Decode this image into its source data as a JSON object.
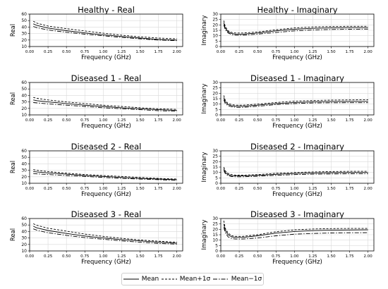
{
  "chart_data": [
    {
      "type": "line",
      "title": "Healthy - Real",
      "xlabel": "Frequency (GHz)",
      "ylabel": "Real",
      "xlim": [
        0,
        2.08
      ],
      "ylim": [
        10,
        60
      ],
      "xticks": [
        "0.00",
        "0.25",
        "0.50",
        "0.75",
        "1.00",
        "1.25",
        "1.50",
        "1.75",
        "2.00"
      ],
      "yticks": [
        "10",
        "20",
        "30",
        "40",
        "50",
        "60"
      ],
      "grid": true,
      "x": [
        0.05,
        0.1,
        0.25,
        0.5,
        0.75,
        1.0,
        1.25,
        1.5,
        1.75,
        2.0
      ],
      "series": [
        {
          "name": "Mean",
          "values": [
            45,
            42.5,
            38.5,
            34.5,
            31,
            28,
            25.5,
            23,
            21,
            20
          ]
        },
        {
          "name": "Mean+1σ",
          "values": [
            49,
            46,
            41.5,
            37.5,
            34,
            30.5,
            27.5,
            25,
            23,
            22
          ]
        },
        {
          "name": "Mean−1σ",
          "values": [
            41,
            39,
            35.5,
            32,
            29,
            26.5,
            24,
            22,
            20,
            19
          ]
        }
      ]
    },
    {
      "type": "line",
      "title": "Healthy - Imaginary",
      "xlabel": "Frequency (GHz)",
      "ylabel": "Imaginary",
      "xlim": [
        0,
        2.08
      ],
      "ylim": [
        0,
        30
      ],
      "xticks": [
        "0.00",
        "0.25",
        "0.50",
        "0.75",
        "1.00",
        "1.25",
        "1.50",
        "1.75",
        "2.00"
      ],
      "yticks": [
        "0",
        "5",
        "10",
        "15",
        "20",
        "25",
        "30"
      ],
      "grid": true,
      "x": [
        0.04,
        0.06,
        0.1,
        0.15,
        0.2,
        0.3,
        0.5,
        0.75,
        1.0,
        1.25,
        1.5,
        1.75,
        2.0
      ],
      "series": [
        {
          "name": "Mean",
          "values": [
            22,
            17,
            13.5,
            12,
            11.5,
            11.5,
            12.5,
            14.5,
            16,
            16.8,
            17.2,
            17.5,
            17.5
          ]
        },
        {
          "name": "Mean+1σ",
          "values": [
            24,
            18.5,
            14.5,
            13,
            12.5,
            12.5,
            13.5,
            15.5,
            17.2,
            18.1,
            18.5,
            18.7,
            18.7
          ]
        },
        {
          "name": "Mean−1σ",
          "values": [
            20,
            15.5,
            12.5,
            11,
            10.5,
            10.5,
            11.5,
            13,
            14.5,
            15.3,
            15.8,
            16,
            16.1
          ]
        }
      ]
    },
    {
      "type": "line",
      "title": "Diseased 1 - Real",
      "xlabel": "Frequency (GHz)",
      "ylabel": "Real",
      "xlim": [
        0,
        2.08
      ],
      "ylim": [
        10,
        60
      ],
      "xticks": [
        "0.00",
        "0.25",
        "0.50",
        "0.75",
        "1.00",
        "1.25",
        "1.50",
        "1.75",
        "2.00"
      ],
      "yticks": [
        "10",
        "20",
        "30",
        "40",
        "50",
        "60"
      ],
      "grid": true,
      "x": [
        0.05,
        0.1,
        0.25,
        0.5,
        0.75,
        1.0,
        1.25,
        1.5,
        1.75,
        2.0
      ],
      "series": [
        {
          "name": "Mean",
          "values": [
            33,
            32,
            30,
            27.5,
            25,
            23,
            21,
            19.5,
            18,
            17
          ]
        },
        {
          "name": "Mean+1σ",
          "values": [
            37,
            35.5,
            33,
            30,
            27.5,
            25,
            23,
            21,
            19.5,
            18.5
          ]
        },
        {
          "name": "Mean−1σ",
          "values": [
            29,
            28.5,
            27,
            25,
            23,
            21,
            19.5,
            18,
            16.5,
            15.5
          ]
        }
      ]
    },
    {
      "type": "line",
      "title": "Diseased 1 - Imaginary",
      "xlabel": "Frequency (GHz)",
      "ylabel": "Imaginary",
      "xlim": [
        0,
        2.08
      ],
      "ylim": [
        0,
        30
      ],
      "xticks": [
        "0.00",
        "0.25",
        "0.50",
        "0.75",
        "1.00",
        "1.25",
        "1.50",
        "1.75",
        "2.00"
      ],
      "yticks": [
        "0",
        "5",
        "10",
        "15",
        "20",
        "25",
        "30"
      ],
      "grid": true,
      "x": [
        0.04,
        0.06,
        0.1,
        0.15,
        0.2,
        0.3,
        0.5,
        0.75,
        1.0,
        1.25,
        1.5,
        1.75,
        2.0
      ],
      "series": [
        {
          "name": "Mean",
          "values": [
            16,
            12,
            9.5,
            8.5,
            8,
            8,
            9,
            10.5,
            11.5,
            12,
            12.3,
            12.5,
            12.5
          ]
        },
        {
          "name": "Mean+1σ",
          "values": [
            18,
            13.5,
            10.5,
            9.5,
            9,
            9,
            10,
            11.5,
            12.7,
            13.3,
            13.7,
            13.9,
            14
          ]
        },
        {
          "name": "Mean−1σ",
          "values": [
            14,
            10.5,
            8.5,
            7.5,
            7,
            7,
            8,
            9.5,
            10.5,
            11,
            11.2,
            11.3,
            11.3
          ]
        }
      ]
    },
    {
      "type": "line",
      "title": "Diseased 2 - Real",
      "xlabel": "Frequency (GHz)",
      "ylabel": "Real",
      "xlim": [
        0,
        2.08
      ],
      "ylim": [
        10,
        60
      ],
      "xticks": [
        "0.00",
        "0.25",
        "0.50",
        "0.75",
        "1.00",
        "1.25",
        "1.50",
        "1.75",
        "2.00"
      ],
      "yticks": [
        "10",
        "20",
        "30",
        "40",
        "50",
        "60"
      ],
      "grid": true,
      "x": [
        0.05,
        0.1,
        0.25,
        0.5,
        0.75,
        1.0,
        1.25,
        1.5,
        1.75,
        2.0
      ],
      "series": [
        {
          "name": "Mean",
          "values": [
            28,
            27.5,
            26,
            24,
            22,
            20.5,
            19,
            17.5,
            16.5,
            15.5
          ]
        },
        {
          "name": "Mean+1σ",
          "values": [
            31,
            30,
            28,
            25.5,
            23.5,
            22,
            20.5,
            19,
            17.5,
            16.5
          ]
        },
        {
          "name": "Mean−1σ",
          "values": [
            25,
            24.5,
            23.5,
            22,
            20.5,
            19,
            17.5,
            16.5,
            15.5,
            14.5
          ]
        }
      ]
    },
    {
      "type": "line",
      "title": "Diseased 2 - Imaginary",
      "xlabel": "Frequency (GHz)",
      "ylabel": "Imaginary",
      "xlim": [
        0,
        2.08
      ],
      "ylim": [
        0,
        30
      ],
      "xticks": [
        "0.00",
        "0.25",
        "0.50",
        "0.75",
        "1.00",
        "1.25",
        "1.50",
        "1.75",
        "2.00"
      ],
      "yticks": [
        "0",
        "5",
        "10",
        "15",
        "20",
        "25",
        "30"
      ],
      "grid": true,
      "x": [
        0.04,
        0.06,
        0.1,
        0.15,
        0.2,
        0.3,
        0.5,
        0.75,
        1.0,
        1.25,
        1.5,
        1.75,
        2.0
      ],
      "series": [
        {
          "name": "Mean",
          "values": [
            13.5,
            10,
            8,
            7,
            6.8,
            6.8,
            7.3,
            8.3,
            9,
            9.5,
            9.8,
            10,
            10
          ]
        },
        {
          "name": "Mean+1σ",
          "values": [
            15,
            11.5,
            9,
            8,
            7.5,
            7.5,
            8,
            9.2,
            10,
            10.5,
            10.8,
            11,
            11
          ]
        },
        {
          "name": "Mean−1σ",
          "values": [
            12,
            9,
            7,
            6.2,
            6,
            6,
            6.5,
            7.3,
            8,
            8.4,
            8.6,
            8.8,
            8.9
          ]
        }
      ]
    },
    {
      "type": "line",
      "title": "Diseased 3 - Real",
      "xlabel": "Frequency (GHz)",
      "ylabel": "Real",
      "xlim": [
        0,
        2.08
      ],
      "ylim": [
        10,
        60
      ],
      "xticks": [
        "0.00",
        "0.25",
        "0.50",
        "0.75",
        "1.00",
        "1.25",
        "1.50",
        "1.75",
        "2.00"
      ],
      "yticks": [
        "10",
        "20",
        "30",
        "40",
        "50",
        "60"
      ],
      "grid": true,
      "x": [
        0.05,
        0.1,
        0.25,
        0.5,
        0.75,
        1.0,
        1.25,
        1.5,
        1.75,
        2.0
      ],
      "series": [
        {
          "name": "Mean",
          "values": [
            48,
            45.5,
            41.5,
            37,
            33,
            30,
            27.5,
            25.5,
            23.5,
            22
          ]
        },
        {
          "name": "Mean+1σ",
          "values": [
            52,
            49.5,
            45,
            40.5,
            36,
            32.5,
            29.5,
            27,
            25,
            23.5
          ]
        },
        {
          "name": "Mean−1σ",
          "values": [
            44,
            42,
            38,
            34,
            30.5,
            28,
            25.5,
            23.5,
            21.5,
            20.5
          ]
        }
      ]
    },
    {
      "type": "line",
      "title": "Diseased 3 - Imaginary",
      "xlabel": "Frequency (GHz)",
      "ylabel": "Imaginary",
      "xlim": [
        0,
        2.08
      ],
      "ylim": [
        0,
        30
      ],
      "xticks": [
        "0.00",
        "0.25",
        "0.50",
        "0.75",
        "1.00",
        "1.25",
        "1.50",
        "1.75",
        "2.00"
      ],
      "yticks": [
        "0",
        "5",
        "10",
        "15",
        "20",
        "25",
        "30"
      ],
      "grid": true,
      "x": [
        0.04,
        0.06,
        0.1,
        0.15,
        0.2,
        0.3,
        0.5,
        0.75,
        1.0,
        1.25,
        1.5,
        1.75,
        2.0
      ],
      "series": [
        {
          "name": "Mean",
          "values": [
            25,
            19,
            15,
            13,
            12.5,
            12.5,
            14,
            16.5,
            18,
            18.8,
            19.2,
            19.4,
            19.5
          ]
        },
        {
          "name": "Mean+1σ",
          "values": [
            28,
            21,
            16.5,
            14,
            13.5,
            13.5,
            15,
            17.8,
            19.5,
            20.3,
            20.7,
            20.8,
            20.8
          ]
        },
        {
          "name": "Mean−1σ",
          "values": [
            22,
            17,
            13,
            11.5,
            11,
            11,
            12,
            14,
            15.5,
            16.2,
            16.6,
            16.8,
            16.9
          ]
        }
      ]
    }
  ],
  "legend": {
    "items": [
      {
        "label": "Mean",
        "dash": "solid"
      },
      {
        "label": "Mean+1σ",
        "dash": "dashed"
      },
      {
        "label": "Mean−1σ",
        "dash": "dashdot"
      }
    ]
  }
}
